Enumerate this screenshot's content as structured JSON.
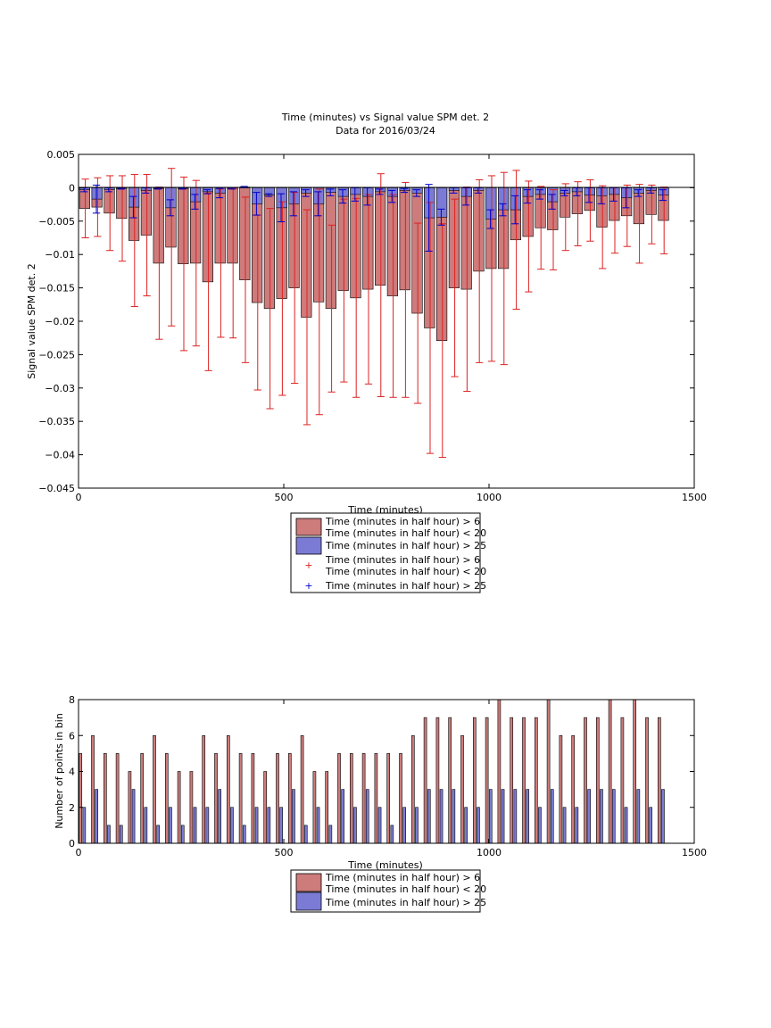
{
  "colors": {
    "series_red": "#cd7b7b",
    "series_blue": "#7b7bd6",
    "err_red": "#dd2222",
    "err_blue": "#0000cc"
  },
  "chart_data": [
    {
      "type": "bar",
      "title": "Time (minutes) vs Signal value SPM det. 2",
      "subtitle": "Data for 2016/03/24",
      "xlabel": "Time (minutes)",
      "ylabel": "Signal value SPM det. 2",
      "xlim": [
        0,
        1500
      ],
      "ylim": [
        -0.045,
        0.005
      ],
      "xticks": [
        "0",
        "500",
        "1000",
        "1500"
      ],
      "yticks": [
        "0.005",
        "0",
        "−0.005",
        "−0.01",
        "−0.015",
        "−0.02",
        "−0.025",
        "−0.03",
        "−0.035",
        "−0.04",
        "−0.045"
      ],
      "x": [
        15,
        45,
        75,
        105,
        135,
        165,
        195,
        225,
        255,
        285,
        315,
        345,
        375,
        405,
        435,
        465,
        495,
        525,
        555,
        585,
        615,
        645,
        675,
        705,
        735,
        765,
        795,
        825,
        855,
        885,
        915,
        945,
        975,
        1005,
        1035,
        1065,
        1095,
        1125,
        1155,
        1185,
        1215,
        1245,
        1275,
        1305,
        1335,
        1365,
        1395,
        1425
      ],
      "legend": [
        "Time (minutes in half hour) > 6",
        "Time (minutes in half hour) < 20",
        "Time (minutes in half hour) > 25",
        "Time (minutes in half hour) > 6",
        "Time (minutes in half hour) < 20",
        "Time (minutes in half hour) > 25"
      ],
      "series": [
        {
          "values": [
            -0.0031,
            -0.0029,
            -0.0038,
            -0.0046,
            -0.0079,
            -0.0071,
            -0.0113,
            -0.0089,
            -0.0114,
            -0.0113,
            -0.0141,
            -0.0113,
            -0.0113,
            -0.0138,
            -0.0172,
            -0.0181,
            -0.0166,
            -0.015,
            -0.0194,
            -0.0171,
            -0.0181,
            -0.0154,
            -0.0165,
            -0.0152,
            -0.0146,
            -0.0162,
            -0.0153,
            -0.0188,
            -0.021,
            -0.0229,
            -0.015,
            -0.0152,
            -0.0125,
            -0.0121,
            -0.0121,
            -0.0078,
            -0.0073,
            -0.006,
            -0.0063,
            -0.0044,
            -0.0039,
            -0.0034,
            -0.0059,
            -0.0049,
            -0.0042,
            -0.0054,
            -0.004,
            -0.0049
          ],
          "err": [
            0.0044,
            0.0044,
            0.0056,
            0.0064,
            0.0099,
            0.0091,
            0.0114,
            0.0118,
            0.013,
            0.0124,
            0.0133,
            0.0111,
            0.0112,
            0.0124,
            0.0131,
            0.015,
            0.0145,
            0.0143,
            0.0161,
            0.0169,
            0.0125,
            0.0137,
            0.0149,
            0.0142,
            0.0167,
            0.0152,
            0.0161,
            0.0135,
            0.0188,
            0.0175,
            0.0133,
            0.0153,
            0.0137,
            0.0139,
            0.0144,
            0.0104,
            0.0083,
            0.0062,
            0.006,
            0.005,
            0.0048,
            0.0046,
            0.0062,
            0.0049,
            0.0046,
            0.0059,
            0.0044,
            0.005
          ]
        },
        {
          "values": [
            -0.0003,
            -0.0017,
            -0.0003,
            -0.0001,
            -0.0029,
            -0.0004,
            -0.0001,
            -0.003,
            -0.0001,
            -0.0021,
            -0.0006,
            -0.0008,
            -0.0001,
            0.0001,
            -0.0024,
            -0.0011,
            -0.003,
            -0.0024,
            -0.0008,
            -0.0024,
            -0.0007,
            -0.0013,
            -0.001,
            -0.0013,
            -0.0006,
            -0.0013,
            -0.0004,
            -0.0008,
            -0.0045,
            -0.0044,
            -0.0004,
            -0.0013,
            -0.0004,
            -0.0047,
            -0.0033,
            -0.0033,
            -0.0013,
            -0.001,
            -0.0021,
            -0.0008,
            -0.0006,
            -0.0011,
            -0.0012,
            -0.001,
            -0.0015,
            -0.0008,
            -0.0004,
            -0.0011
          ],
          "err": [
            0.0003,
            0.0021,
            0.0003,
            0.0001,
            0.0016,
            0.0004,
            0.0001,
            0.0012,
            0.0001,
            0.0011,
            0.0003,
            0.0007,
            0.0001,
            0.0001,
            0.0017,
            0.0002,
            0.0021,
            0.0018,
            0.0005,
            0.0018,
            0.0005,
            0.001,
            0.001,
            0.0013,
            0.0004,
            0.0009,
            0.0003,
            0.0005,
            0.005,
            0.0012,
            0.0004,
            0.0013,
            0.0004,
            0.0014,
            0.0009,
            0.0021,
            0.001,
            0.0007,
            0.0011,
            0.0004,
            0.0006,
            0.0011,
            0.0012,
            0.001,
            0.0015,
            0.0005,
            0.0004,
            0.0008
          ]
        }
      ]
    },
    {
      "type": "bar",
      "xlabel": "Time (minutes)",
      "ylabel": "Number of points in bin",
      "xlim": [
        0,
        1500
      ],
      "ylim": [
        0,
        8
      ],
      "xticks": [
        "0",
        "500",
        "1000",
        "1500"
      ],
      "yticks": [
        "8",
        "6",
        "4",
        "2",
        "0"
      ],
      "x": [
        15,
        45,
        75,
        105,
        135,
        165,
        195,
        225,
        255,
        285,
        315,
        345,
        375,
        405,
        435,
        465,
        495,
        525,
        555,
        585,
        615,
        645,
        675,
        705,
        735,
        765,
        795,
        825,
        855,
        885,
        915,
        945,
        975,
        1005,
        1035,
        1065,
        1095,
        1125,
        1155,
        1185,
        1215,
        1245,
        1275,
        1305,
        1335,
        1365,
        1395,
        1425
      ],
      "legend": [
        "Time (minutes in half hour) > 6",
        "Time (minutes in half hour) < 20",
        "Time (minutes in half hour) > 25"
      ],
      "series": [
        {
          "values": [
            5,
            6,
            5,
            5,
            4,
            5,
            6,
            5,
            4,
            4,
            6,
            5,
            6,
            5,
            5,
            4,
            5,
            5,
            6,
            4,
            4,
            5,
            5,
            5,
            5,
            5,
            5,
            6,
            7,
            7,
            7,
            6,
            7,
            7,
            8,
            7,
            7,
            7,
            8,
            6,
            6,
            7,
            7,
            8,
            7,
            8,
            7,
            7
          ]
        },
        {
          "values": [
            2,
            3,
            1,
            1,
            3,
            2,
            1,
            2,
            1,
            2,
            2,
            3,
            2,
            1,
            2,
            2,
            2,
            3,
            1,
            2,
            1,
            3,
            2,
            3,
            2,
            1,
            2,
            2,
            3,
            3,
            3,
            2,
            2,
            3,
            3,
            3,
            3,
            2,
            3,
            2,
            2,
            3,
            3,
            3,
            2,
            3,
            2,
            3
          ]
        }
      ]
    }
  ]
}
